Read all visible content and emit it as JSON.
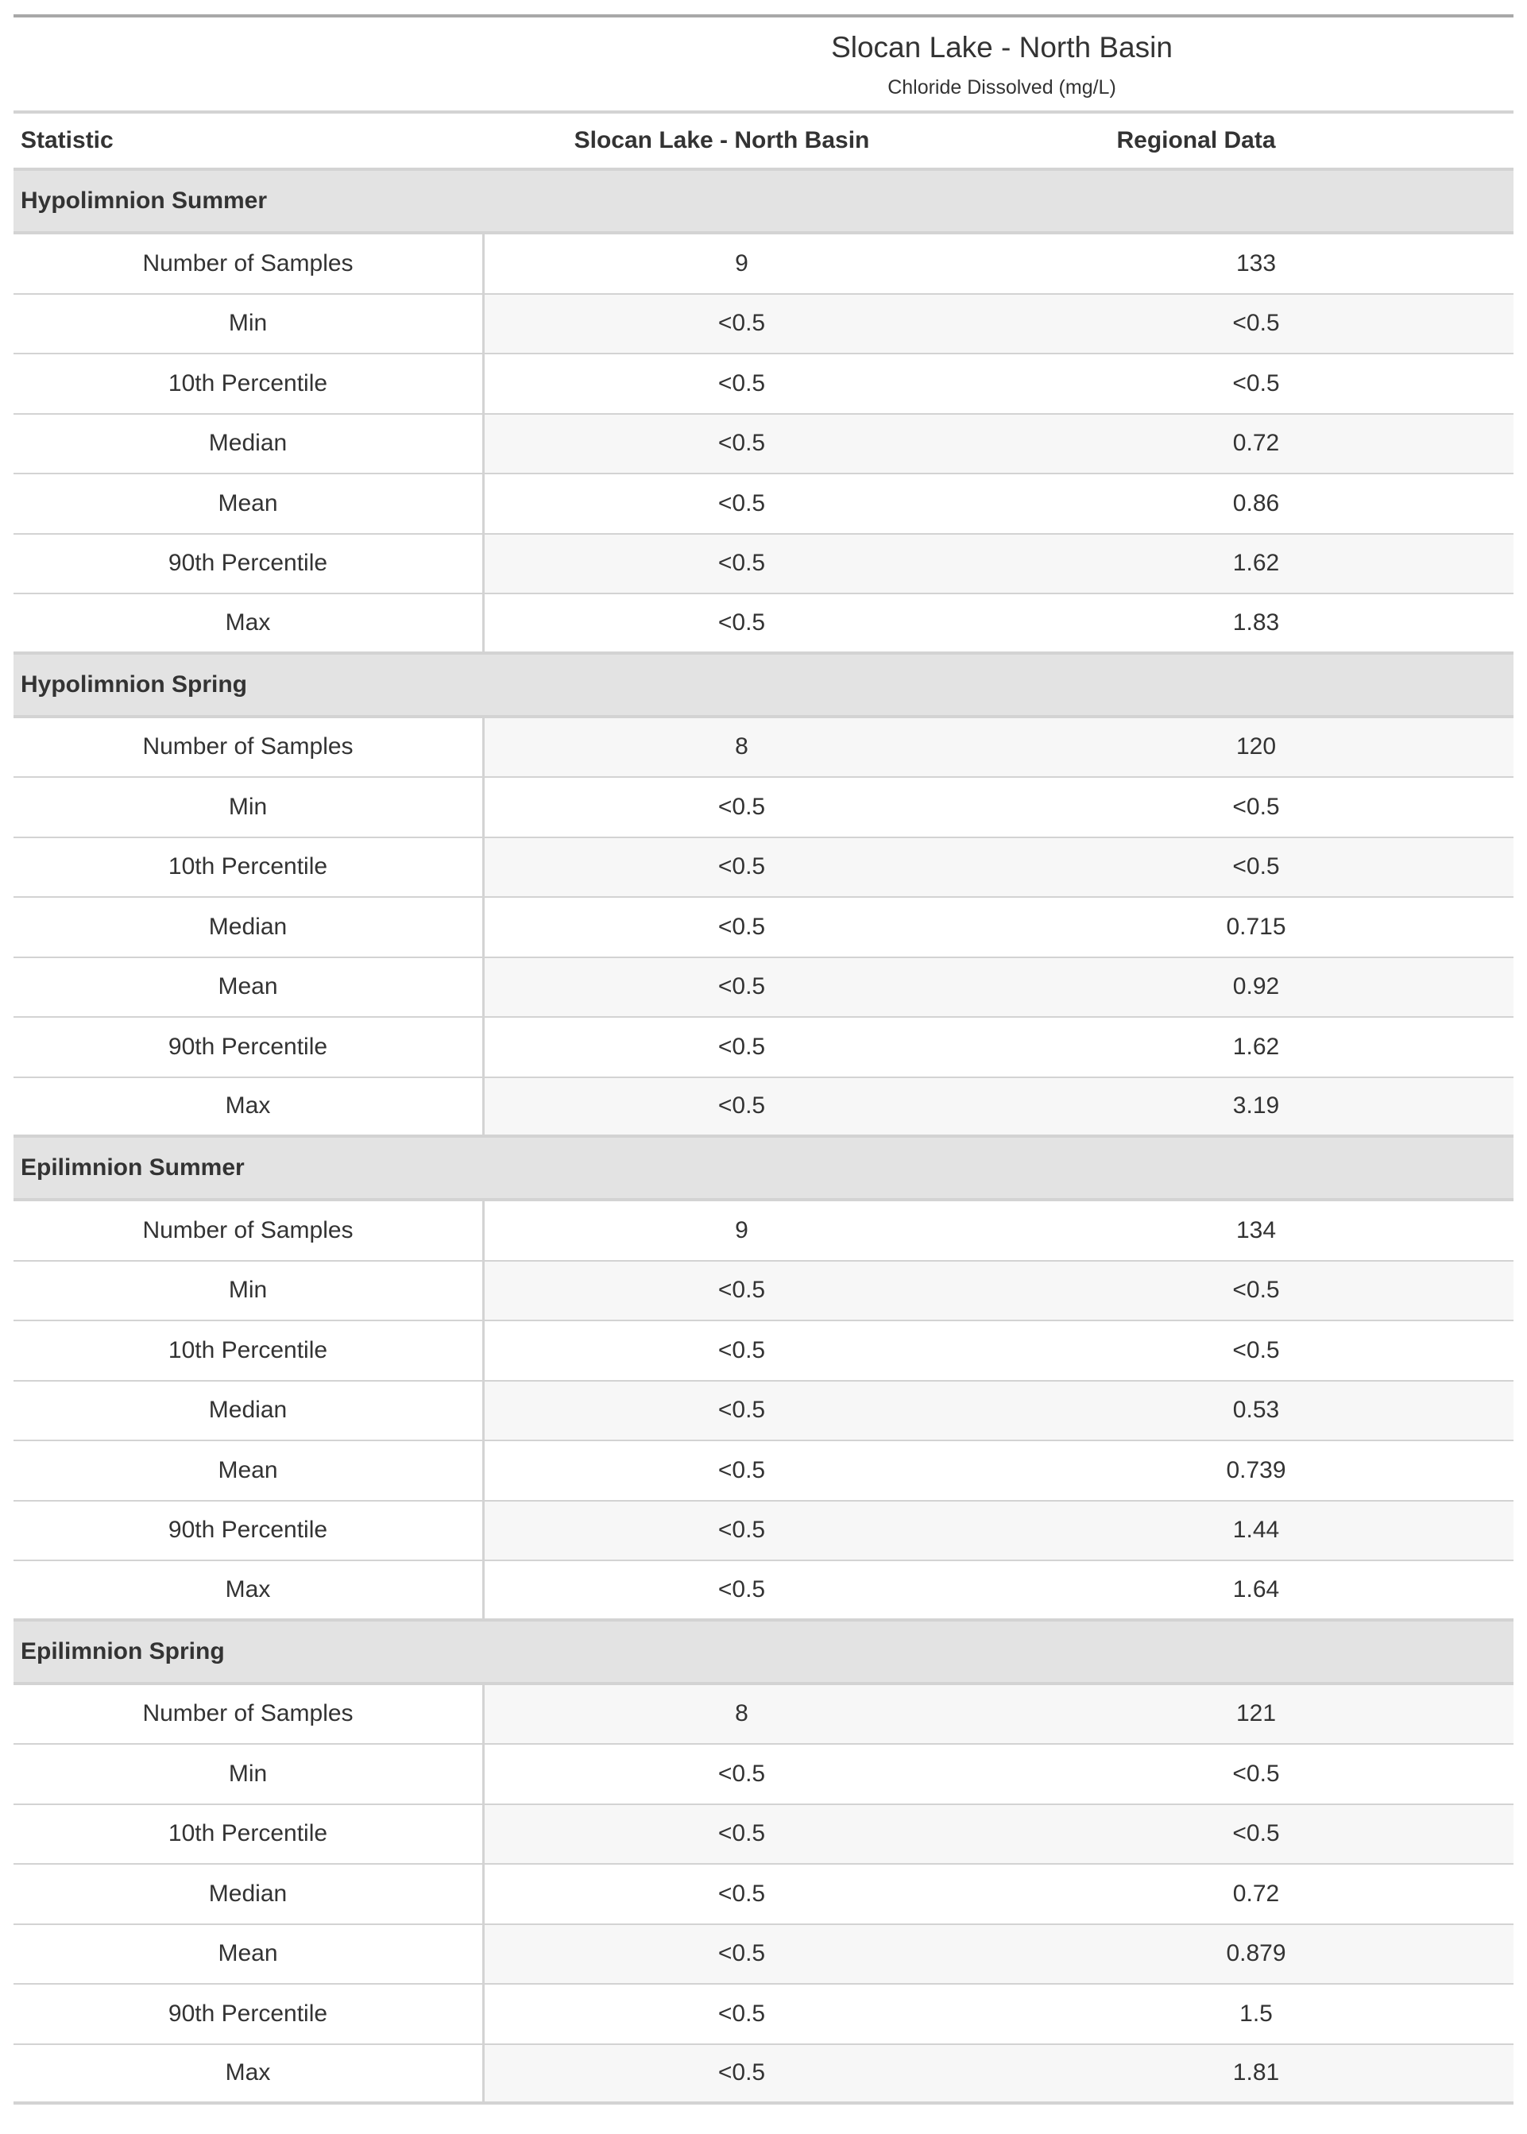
{
  "title": "Slocan Lake - North Basin",
  "subtitle": "Chloride Dissolved (mg/L)",
  "columns": [
    "Statistic",
    "Slocan Lake - North Basin",
    "Regional Data"
  ],
  "groups": [
    {
      "label": "Hypolimnion Summer",
      "rows": [
        [
          "Number of Samples",
          "9",
          "133"
        ],
        [
          "Min",
          "<0.5",
          "<0.5"
        ],
        [
          "10th Percentile",
          "<0.5",
          "<0.5"
        ],
        [
          "Median",
          "<0.5",
          "0.72"
        ],
        [
          "Mean",
          "<0.5",
          "0.86"
        ],
        [
          "90th Percentile",
          "<0.5",
          "1.62"
        ],
        [
          "Max",
          "<0.5",
          "1.83"
        ]
      ]
    },
    {
      "label": "Hypolimnion Spring",
      "rows": [
        [
          "Number of Samples",
          "8",
          "120"
        ],
        [
          "Min",
          "<0.5",
          "<0.5"
        ],
        [
          "10th Percentile",
          "<0.5",
          "<0.5"
        ],
        [
          "Median",
          "<0.5",
          "0.715"
        ],
        [
          "Mean",
          "<0.5",
          "0.92"
        ],
        [
          "90th Percentile",
          "<0.5",
          "1.62"
        ],
        [
          "Max",
          "<0.5",
          "3.19"
        ]
      ]
    },
    {
      "label": "Epilimnion Summer",
      "rows": [
        [
          "Number of Samples",
          "9",
          "134"
        ],
        [
          "Min",
          "<0.5",
          "<0.5"
        ],
        [
          "10th Percentile",
          "<0.5",
          "<0.5"
        ],
        [
          "Median",
          "<0.5",
          "0.53"
        ],
        [
          "Mean",
          "<0.5",
          "0.739"
        ],
        [
          "90th Percentile",
          "<0.5",
          "1.44"
        ],
        [
          "Max",
          "<0.5",
          "1.64"
        ]
      ]
    },
    {
      "label": "Epilimnion Spring",
      "rows": [
        [
          "Number of Samples",
          "8",
          "121"
        ],
        [
          "Min",
          "<0.5",
          "<0.5"
        ],
        [
          "10th Percentile",
          "<0.5",
          "<0.5"
        ],
        [
          "Median",
          "<0.5",
          "0.72"
        ],
        [
          "Mean",
          "<0.5",
          "0.879"
        ],
        [
          "90th Percentile",
          "<0.5",
          "1.5"
        ],
        [
          "Max",
          "<0.5",
          "1.81"
        ]
      ]
    }
  ]
}
